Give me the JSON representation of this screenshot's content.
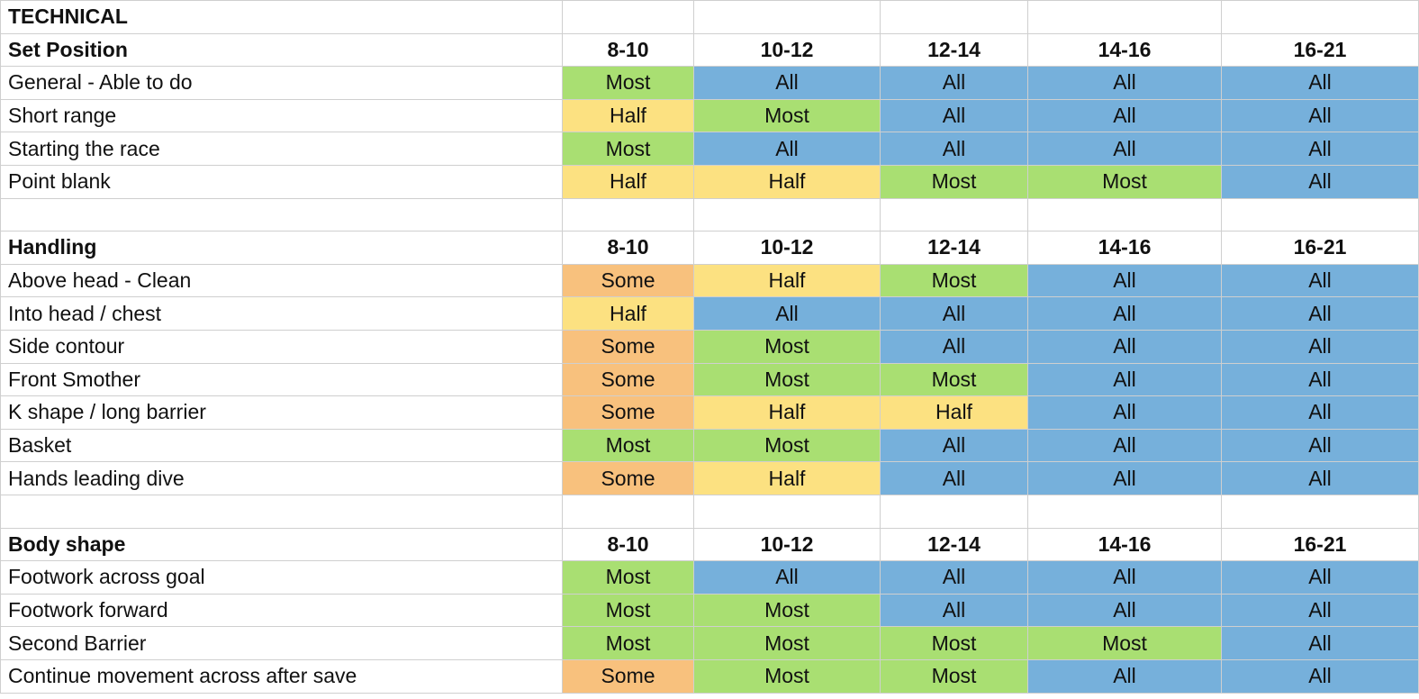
{
  "colors": {
    "All": "#76b0db",
    "Most": "#a9df72",
    "Half": "#fce181",
    "Some": "#f8c17d"
  },
  "rows": [
    {
      "type": "title",
      "label": "TECHNICAL"
    },
    {
      "type": "header",
      "label": "Set Position",
      "cols": [
        "8-10",
        "10-12",
        "12-14",
        "14-16",
        "16-21"
      ]
    },
    {
      "type": "data",
      "label": "General - Able to do",
      "values": [
        "Most",
        "All",
        "All",
        "All",
        "All"
      ]
    },
    {
      "type": "data",
      "label": "Short range",
      "values": [
        "Half",
        "Most",
        "All",
        "All",
        "All"
      ]
    },
    {
      "type": "data",
      "label": "Starting the race",
      "values": [
        "Most",
        "All",
        "All",
        "All",
        "All"
      ]
    },
    {
      "type": "data",
      "label": "Point blank",
      "values": [
        "Half",
        "Half",
        "Most",
        "Most",
        "All"
      ]
    },
    {
      "type": "blank"
    },
    {
      "type": "header",
      "label": "Handling",
      "cols": [
        "8-10",
        "10-12",
        "12-14",
        "14-16",
        "16-21"
      ]
    },
    {
      "type": "data",
      "label": "Above head - Clean",
      "values": [
        "Some",
        "Half",
        "Most",
        "All",
        "All"
      ]
    },
    {
      "type": "data",
      "label": "Into head / chest",
      "values": [
        "Half",
        "All",
        "All",
        "All",
        "All"
      ]
    },
    {
      "type": "data",
      "label": "Side contour",
      "values": [
        "Some",
        "Most",
        "All",
        "All",
        "All"
      ]
    },
    {
      "type": "data",
      "label": "Front Smother",
      "values": [
        "Some",
        "Most",
        "Most",
        "All",
        "All"
      ]
    },
    {
      "type": "data",
      "label": "K shape / long barrier",
      "values": [
        "Some",
        "Half",
        "Half",
        "All",
        "All"
      ]
    },
    {
      "type": "data",
      "label": "Basket",
      "values": [
        "Most",
        "Most",
        "All",
        "All",
        "All"
      ]
    },
    {
      "type": "data",
      "label": "Hands leading dive",
      "values": [
        "Some",
        "Half",
        "All",
        "All",
        "All"
      ]
    },
    {
      "type": "blank"
    },
    {
      "type": "header",
      "label": "Body shape",
      "cols": [
        "8-10",
        "10-12",
        "12-14",
        "14-16",
        "16-21"
      ]
    },
    {
      "type": "data",
      "label": "Footwork across goal",
      "values": [
        "Most",
        "All",
        "All",
        "All",
        "All"
      ]
    },
    {
      "type": "data",
      "label": "Footwork forward",
      "values": [
        "Most",
        "Most",
        "All",
        "All",
        "All"
      ]
    },
    {
      "type": "data",
      "label": "Second Barrier",
      "values": [
        "Most",
        "Most",
        "Most",
        "Most",
        "All"
      ]
    },
    {
      "type": "data",
      "label": "Continue movement across after save",
      "values": [
        "Some",
        "Most",
        "Most",
        "All",
        "All"
      ]
    }
  ]
}
